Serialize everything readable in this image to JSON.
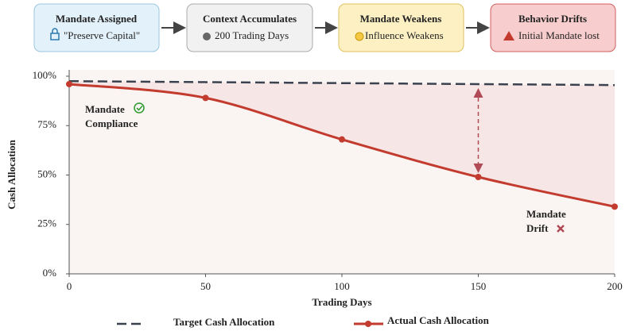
{
  "flow": [
    {
      "title": "Mandate Assigned",
      "subtitle": "\"Preserve Capital\""
    },
    {
      "title": "Context Accumulates",
      "subtitle": "200 Trading Days"
    },
    {
      "title": "Mandate Weakens",
      "subtitle": "Influence Weakens"
    },
    {
      "title": "Behavior Drifts",
      "subtitle": "Initial Mandate lost"
    }
  ],
  "chart_data": {
    "type": "line",
    "x": [
      0,
      50,
      100,
      150,
      200
    ],
    "series": [
      {
        "name": "Target Cash Allocation",
        "color": "#3a4250",
        "values": [
          97.5,
          97,
          96.5,
          96,
          95.5
        ]
      },
      {
        "name": "Actual Cash Allocation",
        "color": "#c23b2e",
        "values": [
          96,
          89,
          68,
          49,
          34
        ]
      }
    ],
    "xlabel": "Trading Days",
    "ylabel": "Cash Allocation",
    "xlim": [
      0,
      200
    ],
    "xticks": [
      0,
      50,
      100,
      150,
      200
    ],
    "ylim": [
      0,
      100
    ],
    "yticks": [
      {
        "value": 0,
        "label": "0%"
      },
      {
        "value": 25,
        "label": "25%"
      },
      {
        "value": 50,
        "label": "50%"
      },
      {
        "value": 75,
        "label": "75%"
      },
      {
        "value": 100,
        "label": "100%"
      }
    ],
    "compliance_label": [
      "Mandate",
      "Compliance"
    ],
    "drift_label": [
      "Mandate",
      "Drift"
    ],
    "legend": "bottom"
  }
}
